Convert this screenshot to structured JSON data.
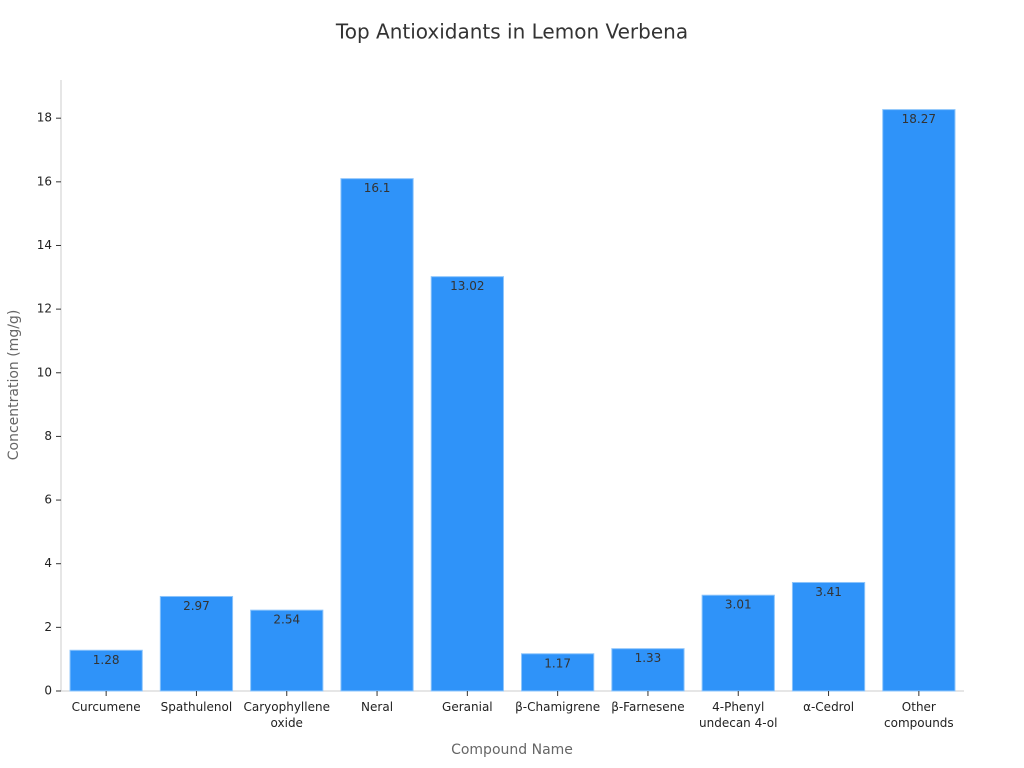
{
  "chart_data": {
    "type": "bar",
    "title": "Top Antioxidants in Lemon Verbena",
    "x_label": "Compound Name",
    "y_label": "Concentration (mg/g)",
    "categories": [
      "Curcumene",
      "Spathulenol",
      "Caryophyllene\noxide",
      "Neral",
      "Geranial",
      "β-Chamigrene",
      "β-Farnesene",
      "4-Phenyl\nundecan 4-ol",
      "α-Cedrol",
      "Other\ncompounds"
    ],
    "values": [
      1.28,
      2.97,
      2.54,
      16.1,
      13.02,
      1.17,
      1.33,
      3.01,
      3.41,
      18.27
    ],
    "color": "#2f93f9",
    "ylim": [
      0,
      19.2
    ],
    "yticks": [
      0,
      2,
      4,
      6,
      8,
      10,
      12,
      14,
      16,
      18
    ]
  }
}
